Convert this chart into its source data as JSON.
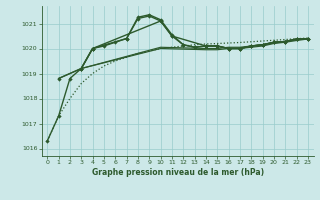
{
  "title": "Graphe pression niveau de la mer (hPa)",
  "bg_color": "#cce8e8",
  "grid_color": "#99cccc",
  "line_color": "#2d5a2d",
  "xlim": [
    -0.5,
    23.5
  ],
  "ylim": [
    1015.7,
    1021.7
  ],
  "yticks": [
    1016,
    1017,
    1018,
    1019,
    1020,
    1021
  ],
  "xticks": [
    0,
    1,
    2,
    3,
    4,
    5,
    6,
    7,
    8,
    9,
    10,
    11,
    12,
    13,
    14,
    15,
    16,
    17,
    18,
    19,
    20,
    21,
    22,
    23
  ],
  "line1_x": [
    0,
    1,
    2,
    3,
    4,
    5,
    6,
    7,
    8,
    9,
    10,
    11,
    12,
    13,
    14,
    15,
    16,
    17,
    18,
    19,
    20,
    21,
    22,
    23
  ],
  "line1_y": [
    1016.3,
    1017.3,
    1018.8,
    1019.2,
    1020.0,
    1020.1,
    1020.25,
    1020.4,
    1021.25,
    1021.35,
    1021.15,
    1020.55,
    1020.15,
    1020.05,
    1020.1,
    1020.1,
    1020.0,
    1020.0,
    1020.1,
    1020.15,
    1020.25,
    1020.28,
    1020.38,
    1020.38
  ],
  "line2_x": [
    1,
    3,
    4,
    7,
    8,
    9,
    10,
    11,
    12,
    13,
    14,
    15,
    16,
    17,
    18,
    19,
    20,
    21,
    22,
    23
  ],
  "line2_y": [
    1018.8,
    1019.2,
    1020.0,
    1020.4,
    1021.2,
    1021.3,
    1021.1,
    1020.5,
    1020.15,
    1020.05,
    1020.1,
    1020.1,
    1020.0,
    1020.0,
    1020.1,
    1020.15,
    1020.25,
    1020.28,
    1020.38,
    1020.38
  ],
  "line3_x": [
    3,
    4,
    10,
    11,
    14,
    15,
    16,
    17,
    18,
    19,
    20,
    21,
    22,
    23
  ],
  "line3_y": [
    1019.2,
    1020.0,
    1021.1,
    1020.5,
    1020.1,
    1020.1,
    1020.0,
    1020.0,
    1020.1,
    1020.15,
    1020.25,
    1020.28,
    1020.38,
    1020.38
  ],
  "flat1_x": [
    1,
    3,
    10,
    14,
    15,
    16,
    17,
    18,
    19,
    20,
    21,
    22,
    23
  ],
  "flat1_y": [
    1018.8,
    1019.2,
    1020.0,
    1019.95,
    1019.95,
    1020.0,
    1020.0,
    1020.05,
    1020.1,
    1020.2,
    1020.25,
    1020.32,
    1020.38
  ],
  "flat2_x": [
    3,
    10,
    14,
    15,
    16,
    17,
    18,
    19,
    20,
    21,
    22,
    23
  ],
  "flat2_y": [
    1019.2,
    1020.05,
    1020.0,
    1020.0,
    1020.05,
    1020.05,
    1020.1,
    1020.15,
    1020.22,
    1020.28,
    1020.35,
    1020.4
  ],
  "dot_x": [
    0,
    1,
    2,
    3,
    4,
    5,
    6,
    7,
    8,
    9,
    10,
    11,
    12,
    13,
    14,
    15,
    16,
    17,
    18,
    19,
    20,
    21,
    22,
    23
  ],
  "dot_y": [
    1016.3,
    1017.3,
    1018.0,
    1018.6,
    1019.0,
    1019.3,
    1019.5,
    1019.65,
    1019.8,
    1019.9,
    1020.0,
    1020.05,
    1020.1,
    1020.15,
    1020.18,
    1020.2,
    1020.22,
    1020.24,
    1020.27,
    1020.3,
    1020.33,
    1020.36,
    1020.39,
    1020.42
  ]
}
